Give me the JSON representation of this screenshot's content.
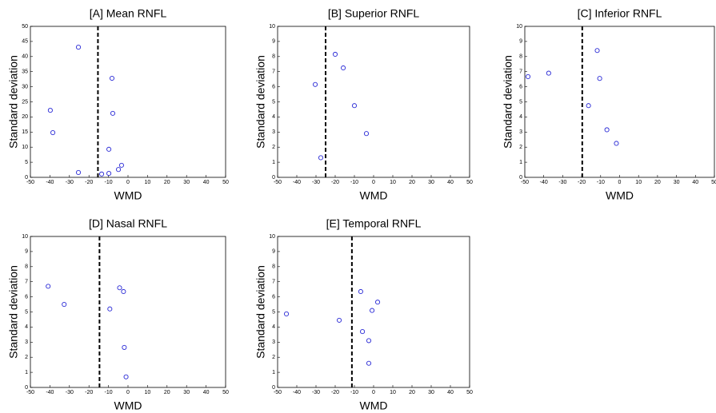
{
  "chart_data": [
    {
      "type": "scatter",
      "title": "[A] Mean RNFL",
      "xlabel": "WMD",
      "ylabel": "Standard deviation",
      "color": "#2b2bd6",
      "x": [
        -25.4,
        -8.2,
        -39.8,
        -7.8,
        -38.5,
        -9.8,
        -25.4,
        -3.3,
        -4.9,
        -9.8,
        -13.5
      ],
      "y": [
        43.1,
        32.8,
        22.2,
        21.2,
        14.8,
        9.3,
        1.6,
        4.0,
        2.6,
        1.3,
        1.1
      ],
      "reference_x": -15.4,
      "xlim": [
        -50,
        50
      ],
      "xticks": [
        -50,
        -40,
        -30,
        -20,
        -10,
        0,
        10,
        20,
        30,
        40,
        50
      ],
      "ylim": [
        0,
        50
      ],
      "yticks": [
        0,
        5,
        10,
        15,
        20,
        25,
        30,
        35,
        40,
        45,
        50
      ]
    },
    {
      "type": "scatter",
      "title": "[B] Superior RNFL",
      "xlabel": "WMD",
      "ylabel": "Standard deviation",
      "color": "#2b2bd6",
      "x": [
        -20,
        -15.8,
        -30.4,
        -10,
        -3.75,
        -27.5
      ],
      "y": [
        8.15,
        7.25,
        6.15,
        4.75,
        2.9,
        1.3
      ],
      "reference_x": -25,
      "xlim": [
        -50,
        50
      ],
      "xticks": [
        -50,
        -40,
        -30,
        -20,
        -10,
        0,
        10,
        20,
        30,
        40,
        50
      ],
      "ylim": [
        0,
        10
      ],
      "yticks": [
        0,
        1,
        2,
        3,
        4,
        5,
        6,
        7,
        8,
        9,
        10
      ]
    },
    {
      "type": "scatter",
      "title": "[C] Inferior RNFL",
      "xlabel": "WMD",
      "ylabel": "Standard deviation",
      "color": "#2b2bd6",
      "x": [
        -48.3,
        -37.4,
        -11.8,
        -10.5,
        -16.4,
        -6.7,
        -1.7
      ],
      "y": [
        6.67,
        6.9,
        8.4,
        6.55,
        4.75,
        3.15,
        2.25
      ],
      "reference_x": -19.7,
      "xlim": [
        -50,
        50
      ],
      "xticks": [
        -50,
        -40,
        -30,
        -20,
        -10,
        0,
        10,
        20,
        30,
        40,
        50
      ],
      "ylim": [
        0,
        10
      ],
      "yticks": [
        0,
        1,
        2,
        3,
        4,
        5,
        6,
        7,
        8,
        9,
        10
      ]
    },
    {
      "type": "scatter",
      "title": "[D] Nasal RNFL",
      "xlabel": "WMD",
      "ylabel": "Standard deviation",
      "color": "#2b2bd6",
      "x": [
        -40.9,
        -32.7,
        -4.3,
        -2.3,
        -9.3,
        -1.9,
        -1.0
      ],
      "y": [
        6.7,
        5.5,
        6.6,
        6.35,
        5.2,
        2.65,
        0.7
      ],
      "reference_x": -14.6,
      "xlim": [
        -50,
        50
      ],
      "xticks": [
        -50,
        -40,
        -30,
        -20,
        -10,
        0,
        10,
        20,
        30,
        40,
        50
      ],
      "ylim": [
        0,
        10
      ],
      "yticks": [
        0,
        1,
        2,
        3,
        4,
        5,
        6,
        7,
        8,
        9,
        10
      ]
    },
    {
      "type": "scatter",
      "title": "[E] Temporal RNFL",
      "xlabel": "WMD",
      "ylabel": "Standard deviation",
      "color": "#2b2bd6",
      "x": [
        -45.4,
        -17.9,
        -6.7,
        2.1,
        -0.8,
        -5.8,
        -2.5,
        -2.5
      ],
      "y": [
        4.87,
        4.45,
        6.35,
        5.65,
        5.1,
        3.7,
        3.1,
        1.6
      ],
      "reference_x": -11.3,
      "xlim": [
        -50,
        50
      ],
      "xticks": [
        -50,
        -40,
        -30,
        -20,
        -10,
        0,
        10,
        20,
        30,
        40,
        50
      ],
      "ylim": [
        0,
        10
      ],
      "yticks": [
        0,
        1,
        2,
        3,
        4,
        5,
        6,
        7,
        8,
        9,
        10
      ]
    }
  ]
}
